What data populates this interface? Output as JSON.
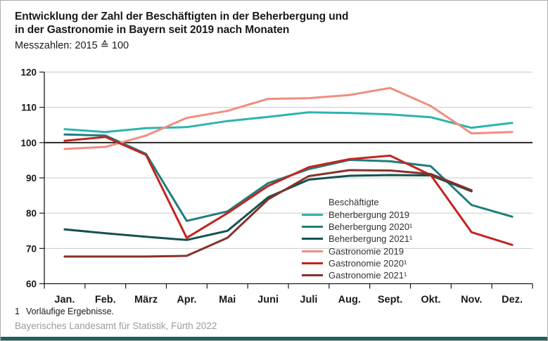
{
  "header": {
    "title_line1": "Entwicklung der Zahl der Beschäftigten in der Beherbergung und",
    "title_line2": "in der Gastronomie in Bayern seit 2019 nach Monaten",
    "subtitle": "Messzahlen: 2015 ≙ 100"
  },
  "footer": {
    "footnote_marker": "1",
    "footnote_text": "Vorläufige Ergebnisse.",
    "source": "Bayerisches Landesamt für Statistik, Fürth 2022"
  },
  "colors": {
    "footer_bar": "#1f6360",
    "grid": "#c9c9c9",
    "axis": "#1a1a1a",
    "reference_line": "#1a1a1a",
    "source_text": "#9c9c9c"
  },
  "chart_data": {
    "type": "line",
    "title": "Entwicklung der Zahl der Beschäftigten in der Beherbergung und in der Gastronomie in Bayern seit 2019 nach Monaten",
    "subtitle": "Messzahlen: 2015 ≙ 100",
    "xlabel": "",
    "ylabel": "",
    "ylim": [
      60,
      120
    ],
    "yticks": [
      60,
      70,
      80,
      90,
      100,
      110,
      120
    ],
    "reference_line": 100,
    "grid": true,
    "legend_title": "Beschäftigte",
    "legend_position": "inside-center-right",
    "categories": [
      "Jan.",
      "Feb.",
      "März",
      "Apr.",
      "Mai",
      "Juni",
      "Juli",
      "Aug.",
      "Sept.",
      "Okt.",
      "Nov.",
      "Dez."
    ],
    "series": [
      {
        "name": "beherbergung-2019",
        "label": "Beherbergung 2019",
        "color": "#2cb4ad",
        "values": [
          103.8,
          103.0,
          104.1,
          104.4,
          106.1,
          107.3,
          108.6,
          108.4,
          108.0,
          107.2,
          104.2,
          105.6
        ]
      },
      {
        "name": "beherbergung-2020",
        "label": "Beherbergung 2020¹",
        "color": "#1e7e7b",
        "values": [
          102.3,
          102.0,
          96.8,
          77.8,
          80.5,
          88.5,
          92.5,
          95.1,
          94.7,
          93.3,
          82.3,
          79.0
        ]
      },
      {
        "name": "beherbergung-2021",
        "label": "Beherbergung 2021¹",
        "color": "#14514e",
        "values": [
          75.4,
          74.3,
          73.3,
          72.4,
          75.0,
          84.5,
          89.5,
          90.6,
          90.8,
          90.7,
          86.2
        ]
      },
      {
        "name": "gastronomie-2019",
        "label": "Gastronomie 2019",
        "color": "#f28d7e",
        "values": [
          98.2,
          98.8,
          102.0,
          107.0,
          109.0,
          112.4,
          112.6,
          113.5,
          115.5,
          110.4,
          102.6,
          103.0
        ]
      },
      {
        "name": "gastronomie-2020",
        "label": "Gastronomie 2020¹",
        "color": "#c42420",
        "values": [
          100.5,
          101.6,
          96.5,
          73.0,
          80.0,
          87.7,
          93.0,
          95.3,
          96.3,
          90.8,
          74.6,
          71.0
        ]
      },
      {
        "name": "gastronomie-2021",
        "label": "Gastronomie 2021¹",
        "color": "#85312b",
        "values": [
          67.7,
          67.7,
          67.7,
          67.9,
          73.0,
          83.9,
          90.5,
          92.2,
          92.1,
          91.1,
          86.5
        ]
      }
    ]
  }
}
